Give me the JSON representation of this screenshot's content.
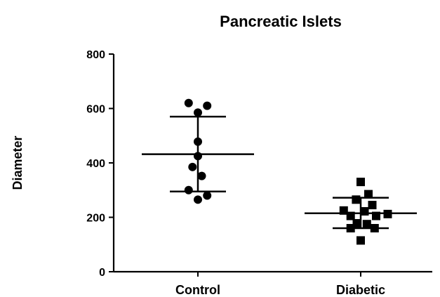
{
  "chart_data": {
    "type": "scatter",
    "title": "Pancreatic Islets",
    "xlabel": "",
    "ylabel": "Diameter",
    "ylim": [
      0,
      800
    ],
    "yticks": [
      0,
      200,
      400,
      600,
      800
    ],
    "grid": false,
    "categories": [
      "Control",
      "Diabetic"
    ],
    "series": [
      {
        "category": "Control",
        "marker": "circle",
        "color": "#000000",
        "points": [
          {
            "offset": -0.12,
            "y": 620
          },
          {
            "offset": 0.12,
            "y": 610
          },
          {
            "offset": 0.0,
            "y": 585
          },
          {
            "offset": 0.0,
            "y": 478
          },
          {
            "offset": 0.0,
            "y": 425
          },
          {
            "offset": -0.07,
            "y": 385
          },
          {
            "offset": 0.05,
            "y": 352
          },
          {
            "offset": -0.12,
            "y": 300
          },
          {
            "offset": 0.12,
            "y": 280
          },
          {
            "offset": 0.0,
            "y": 265
          }
        ],
        "mean": 432,
        "error_upper": 570,
        "error_lower": 295
      },
      {
        "category": "Diabetic",
        "marker": "square",
        "color": "#000000",
        "points": [
          {
            "offset": 0.0,
            "y": 330
          },
          {
            "offset": 0.1,
            "y": 285
          },
          {
            "offset": -0.06,
            "y": 265
          },
          {
            "offset": 0.15,
            "y": 245
          },
          {
            "offset": -0.22,
            "y": 225
          },
          {
            "offset": 0.05,
            "y": 222
          },
          {
            "offset": 0.35,
            "y": 212
          },
          {
            "offset": -0.13,
            "y": 205
          },
          {
            "offset": 0.2,
            "y": 205
          },
          {
            "offset": -0.05,
            "y": 178
          },
          {
            "offset": 0.08,
            "y": 175
          },
          {
            "offset": -0.13,
            "y": 160
          },
          {
            "offset": 0.18,
            "y": 160
          },
          {
            "offset": 0.0,
            "y": 115
          }
        ],
        "mean": 215,
        "error_upper": 272,
        "error_lower": 160
      }
    ]
  }
}
